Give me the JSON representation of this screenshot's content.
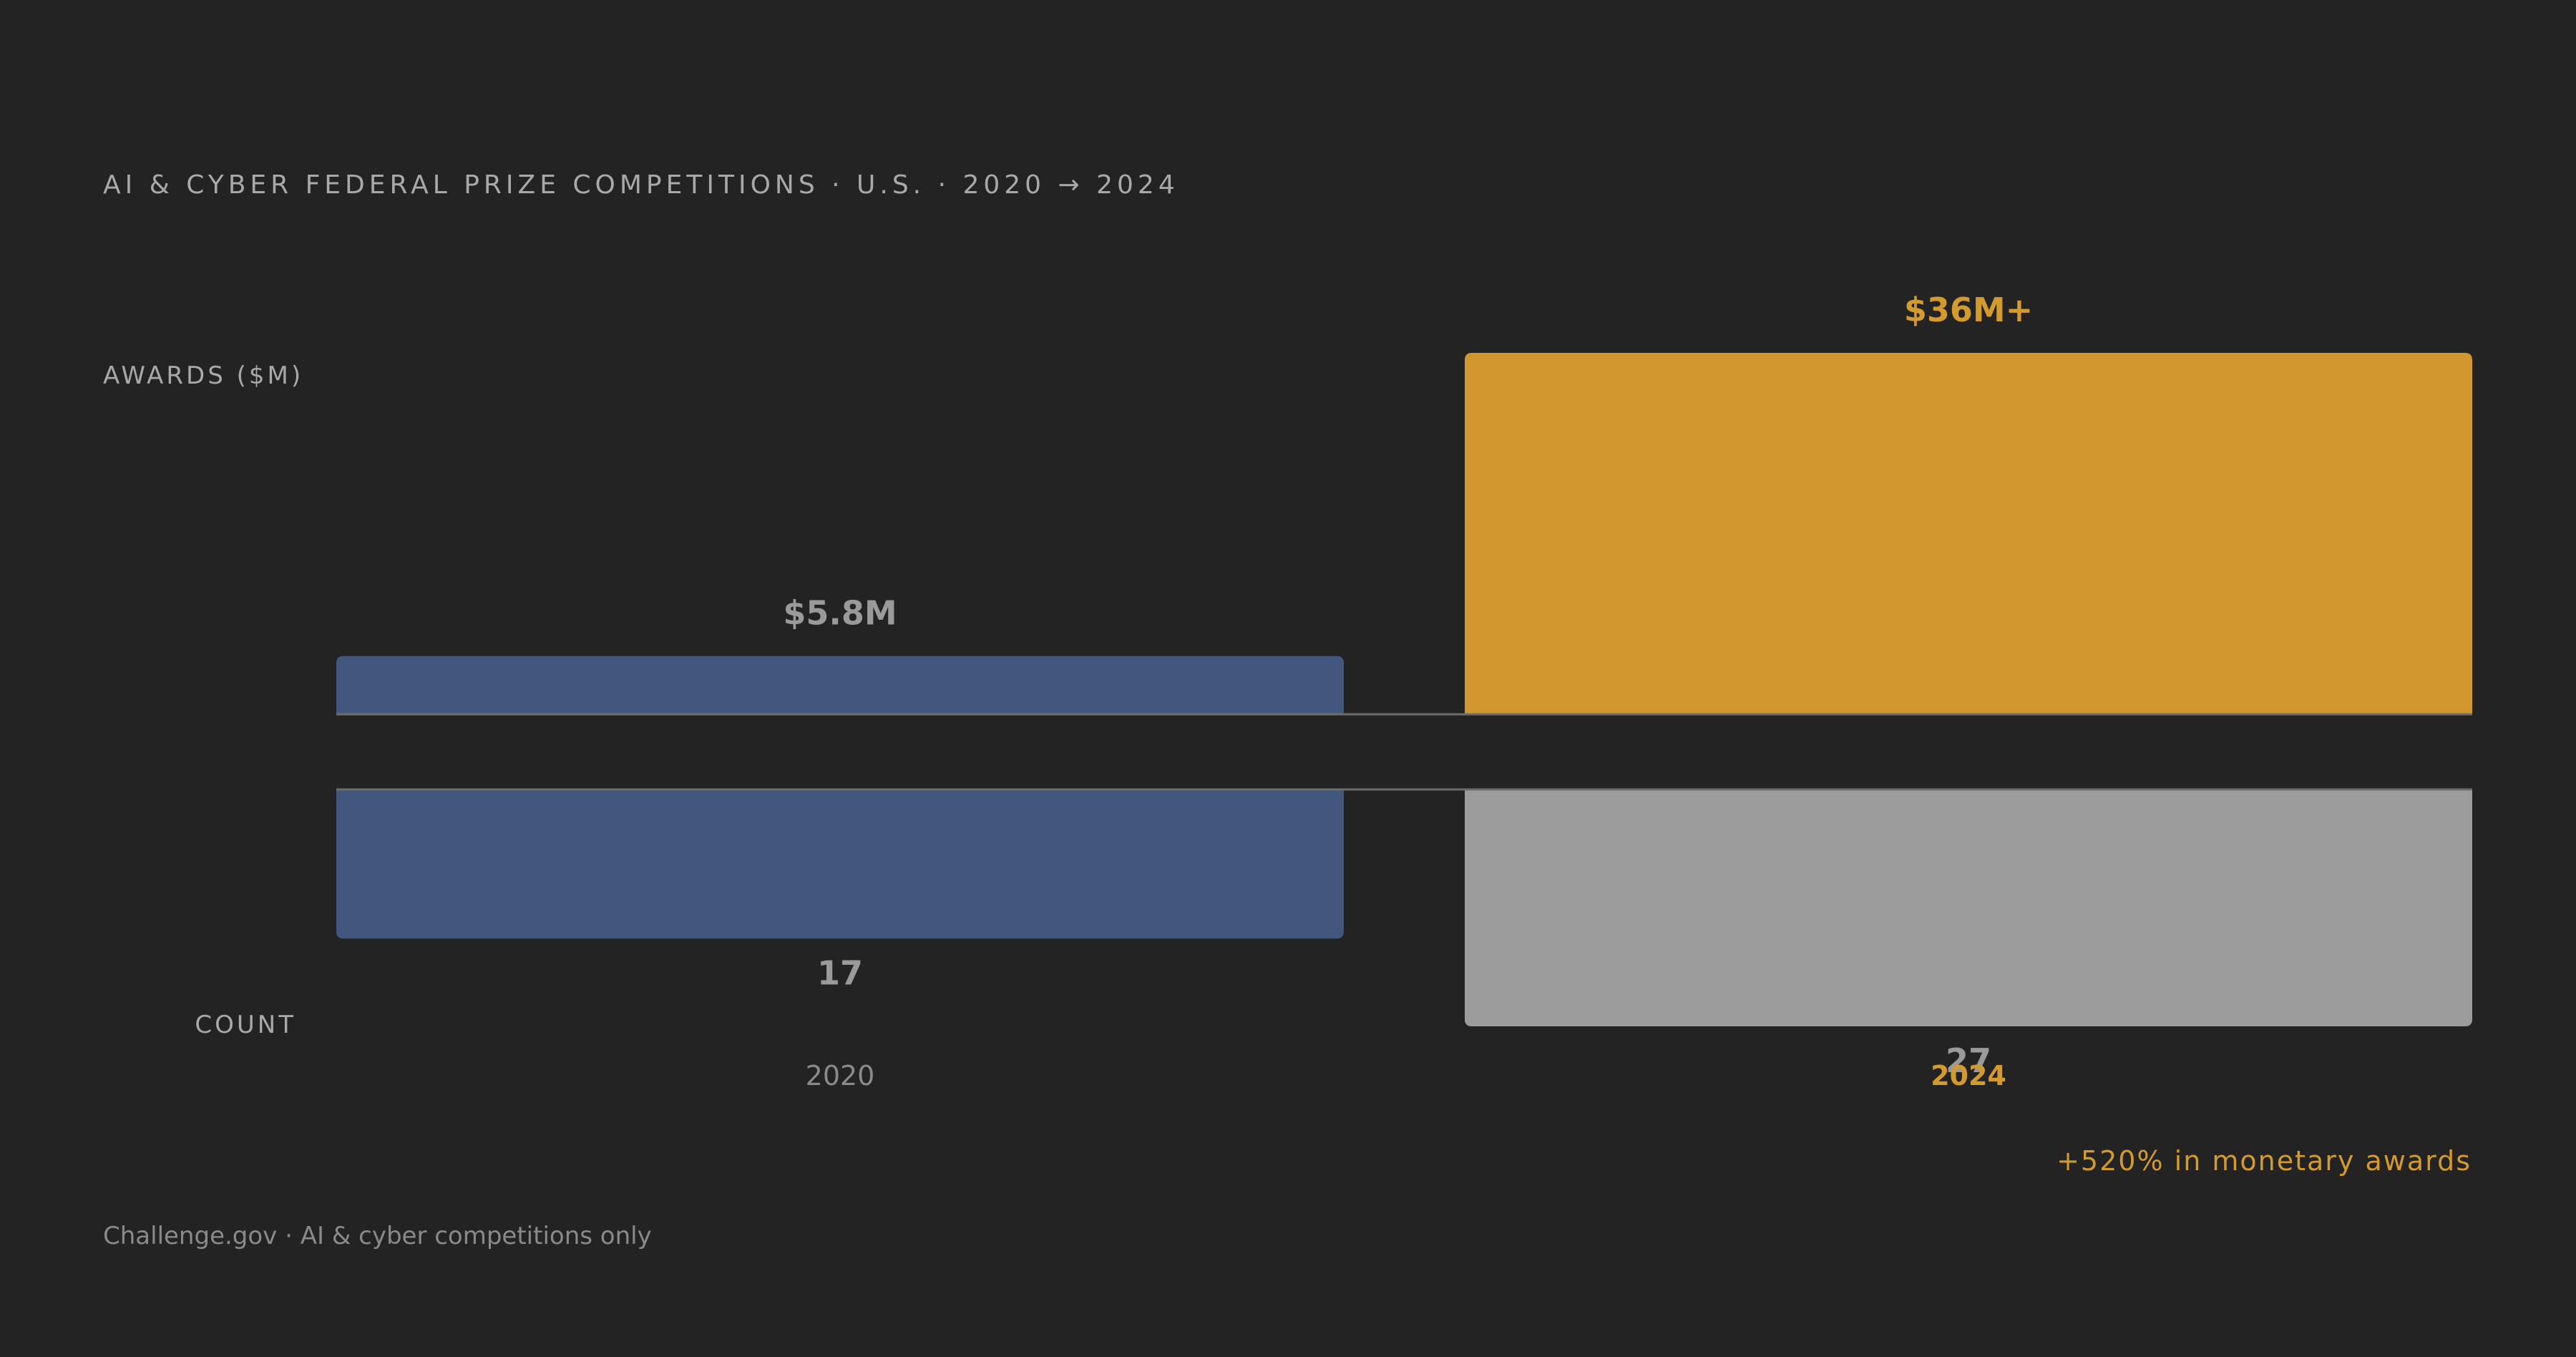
{
  "header": {
    "title": "AI & CYBER FEDERAL PRIZE COMPETITIONS · U.S. · 2020 → 2024"
  },
  "axes": {
    "top_label": "AWARDS ($M)",
    "bottom_label": "COUNT"
  },
  "footer": {
    "note": "+520% in monetary awards",
    "source": "Challenge.gov · AI & cyber competitions only"
  },
  "colors": {
    "background": "#232323",
    "bar_2020": "#42577e",
    "bar_2024_awards": "#d2972f",
    "bar_2024_count": "#9c9c9c",
    "label_muted": "#9a9a9a",
    "accent": "#d39a2f"
  },
  "chart_data": {
    "type": "bar",
    "categories": [
      "2020",
      "2024"
    ],
    "series": [
      {
        "values": [
          5.8,
          36
        ],
        "value_labels": [
          "$5.8M",
          "$36M+"
        ]
      },
      {
        "values": [
          17,
          27
        ],
        "value_labels": [
          "17",
          "27"
        ]
      }
    ],
    "ylabel": "AWARDS ($M)",
    "ylabel_secondary": "COUNT",
    "grid": false,
    "legend": "none"
  }
}
